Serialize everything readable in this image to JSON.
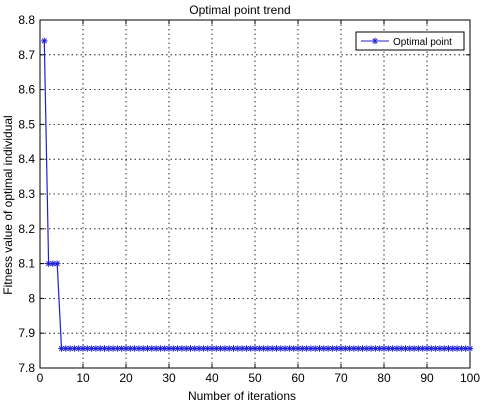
{
  "chart_data": {
    "type": "line",
    "title": "Optimal point trend",
    "xlabel": "Number of iterations",
    "ylabel": "Fitness value of optimal individual",
    "xlim": [
      0,
      100
    ],
    "ylim": [
      7.8,
      8.8
    ],
    "xticks": [
      "0",
      "10",
      "20",
      "30",
      "40",
      "50",
      "60",
      "70",
      "80",
      "90",
      "100"
    ],
    "yticks": [
      "7.8",
      "7.9",
      "8",
      "8.1",
      "8.2",
      "8.3",
      "8.4",
      "8.5",
      "8.6",
      "8.7",
      "8.8"
    ],
    "grid": true,
    "legend_position": "top-right",
    "series": [
      {
        "name": "Optimal point",
        "color": "#1f1fd6",
        "marker": "asterisk",
        "x": [
          1,
          2,
          3,
          4,
          5,
          6,
          7,
          8,
          9,
          10,
          11,
          12,
          13,
          14,
          15,
          16,
          17,
          18,
          19,
          20,
          21,
          22,
          23,
          24,
          25,
          26,
          27,
          28,
          29,
          30,
          31,
          32,
          33,
          34,
          35,
          36,
          37,
          38,
          39,
          40,
          41,
          42,
          43,
          44,
          45,
          46,
          47,
          48,
          49,
          50,
          51,
          52,
          53,
          54,
          55,
          56,
          57,
          58,
          59,
          60,
          61,
          62,
          63,
          64,
          65,
          66,
          67,
          68,
          69,
          70,
          71,
          72,
          73,
          74,
          75,
          76,
          77,
          78,
          79,
          80,
          81,
          82,
          83,
          84,
          85,
          86,
          87,
          88,
          89,
          90,
          91,
          92,
          93,
          94,
          95,
          96,
          97,
          98,
          99,
          100
        ],
        "y": [
          8.74,
          8.1,
          8.1,
          8.1,
          7.856,
          7.856,
          7.856,
          7.856,
          7.856,
          7.856,
          7.856,
          7.856,
          7.856,
          7.856,
          7.856,
          7.856,
          7.856,
          7.856,
          7.856,
          7.856,
          7.856,
          7.856,
          7.856,
          7.856,
          7.856,
          7.856,
          7.856,
          7.856,
          7.856,
          7.856,
          7.856,
          7.856,
          7.856,
          7.856,
          7.856,
          7.856,
          7.856,
          7.856,
          7.856,
          7.856,
          7.856,
          7.856,
          7.856,
          7.856,
          7.856,
          7.856,
          7.856,
          7.856,
          7.856,
          7.856,
          7.856,
          7.856,
          7.856,
          7.856,
          7.856,
          7.856,
          7.856,
          7.856,
          7.856,
          7.856,
          7.856,
          7.856,
          7.856,
          7.856,
          7.856,
          7.856,
          7.856,
          7.856,
          7.856,
          7.856,
          7.856,
          7.856,
          7.856,
          7.856,
          7.856,
          7.856,
          7.856,
          7.856,
          7.856,
          7.856,
          7.856,
          7.856,
          7.856,
          7.856,
          7.856,
          7.856,
          7.856,
          7.856,
          7.856,
          7.856,
          7.856,
          7.856,
          7.856,
          7.856,
          7.856,
          7.856,
          7.856,
          7.856,
          7.856,
          7.856
        ]
      }
    ]
  }
}
